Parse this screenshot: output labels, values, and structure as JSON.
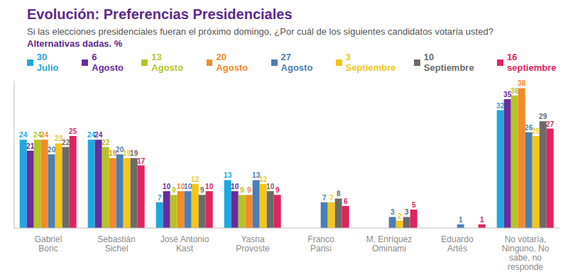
{
  "chart_data": {
    "type": "bar",
    "title": "Evolución: Preferencias Presidenciales",
    "subtitle": "Si las elecciones presidenciales fueran el próximo domingo, ¿Por cuál de los siguientes candidatos votaría usted?",
    "note": "Alternativas dadas. %",
    "categories": [
      "Gabriel Boric",
      "Sebastián Sichel",
      "José Antonio Kast",
      "Yasna Provoste",
      "Franco Parisi",
      "M. Enríquez Ominami",
      "Eduardo Artés",
      "No votaría, Ninguno, No sabe, no responde"
    ],
    "series": [
      {
        "name": "30 Julio",
        "color": "#1fa8e0",
        "values": [
          24,
          24,
          7,
          13,
          null,
          null,
          null,
          32
        ]
      },
      {
        "name": "6 Agosto",
        "color": "#6a2c9e",
        "values": [
          21,
          24,
          10,
          10,
          null,
          null,
          null,
          35
        ]
      },
      {
        "name": "13 Agosto",
        "color": "#b5c424",
        "values": [
          24,
          22,
          9,
          9,
          null,
          null,
          null,
          36
        ]
      },
      {
        "name": "20 Agosto",
        "color": "#f58a2a",
        "values": [
          24,
          19,
          10,
          9,
          null,
          null,
          null,
          38
        ]
      },
      {
        "name": "27 Agosto",
        "color": "#4a7fb5",
        "values": [
          20,
          20,
          10,
          13,
          7,
          3,
          1,
          26
        ]
      },
      {
        "name": "3 Septiembre",
        "color": "#f5c518",
        "values": [
          23,
          19,
          12,
          12,
          7,
          2,
          0,
          25
        ]
      },
      {
        "name": "10 Septiembre",
        "color": "#6b6b6b",
        "values": [
          22,
          19,
          9,
          10,
          8,
          3,
          0,
          29
        ]
      },
      {
        "name": "16 septiembre",
        "color": "#e0245e",
        "values": [
          25,
          17,
          10,
          9,
          6,
          5,
          1,
          27
        ]
      }
    ],
    "ylim": [
      0,
      40
    ],
    "legend": "top",
    "data_labels": true,
    "tick_labels": "x",
    "grid": false
  }
}
